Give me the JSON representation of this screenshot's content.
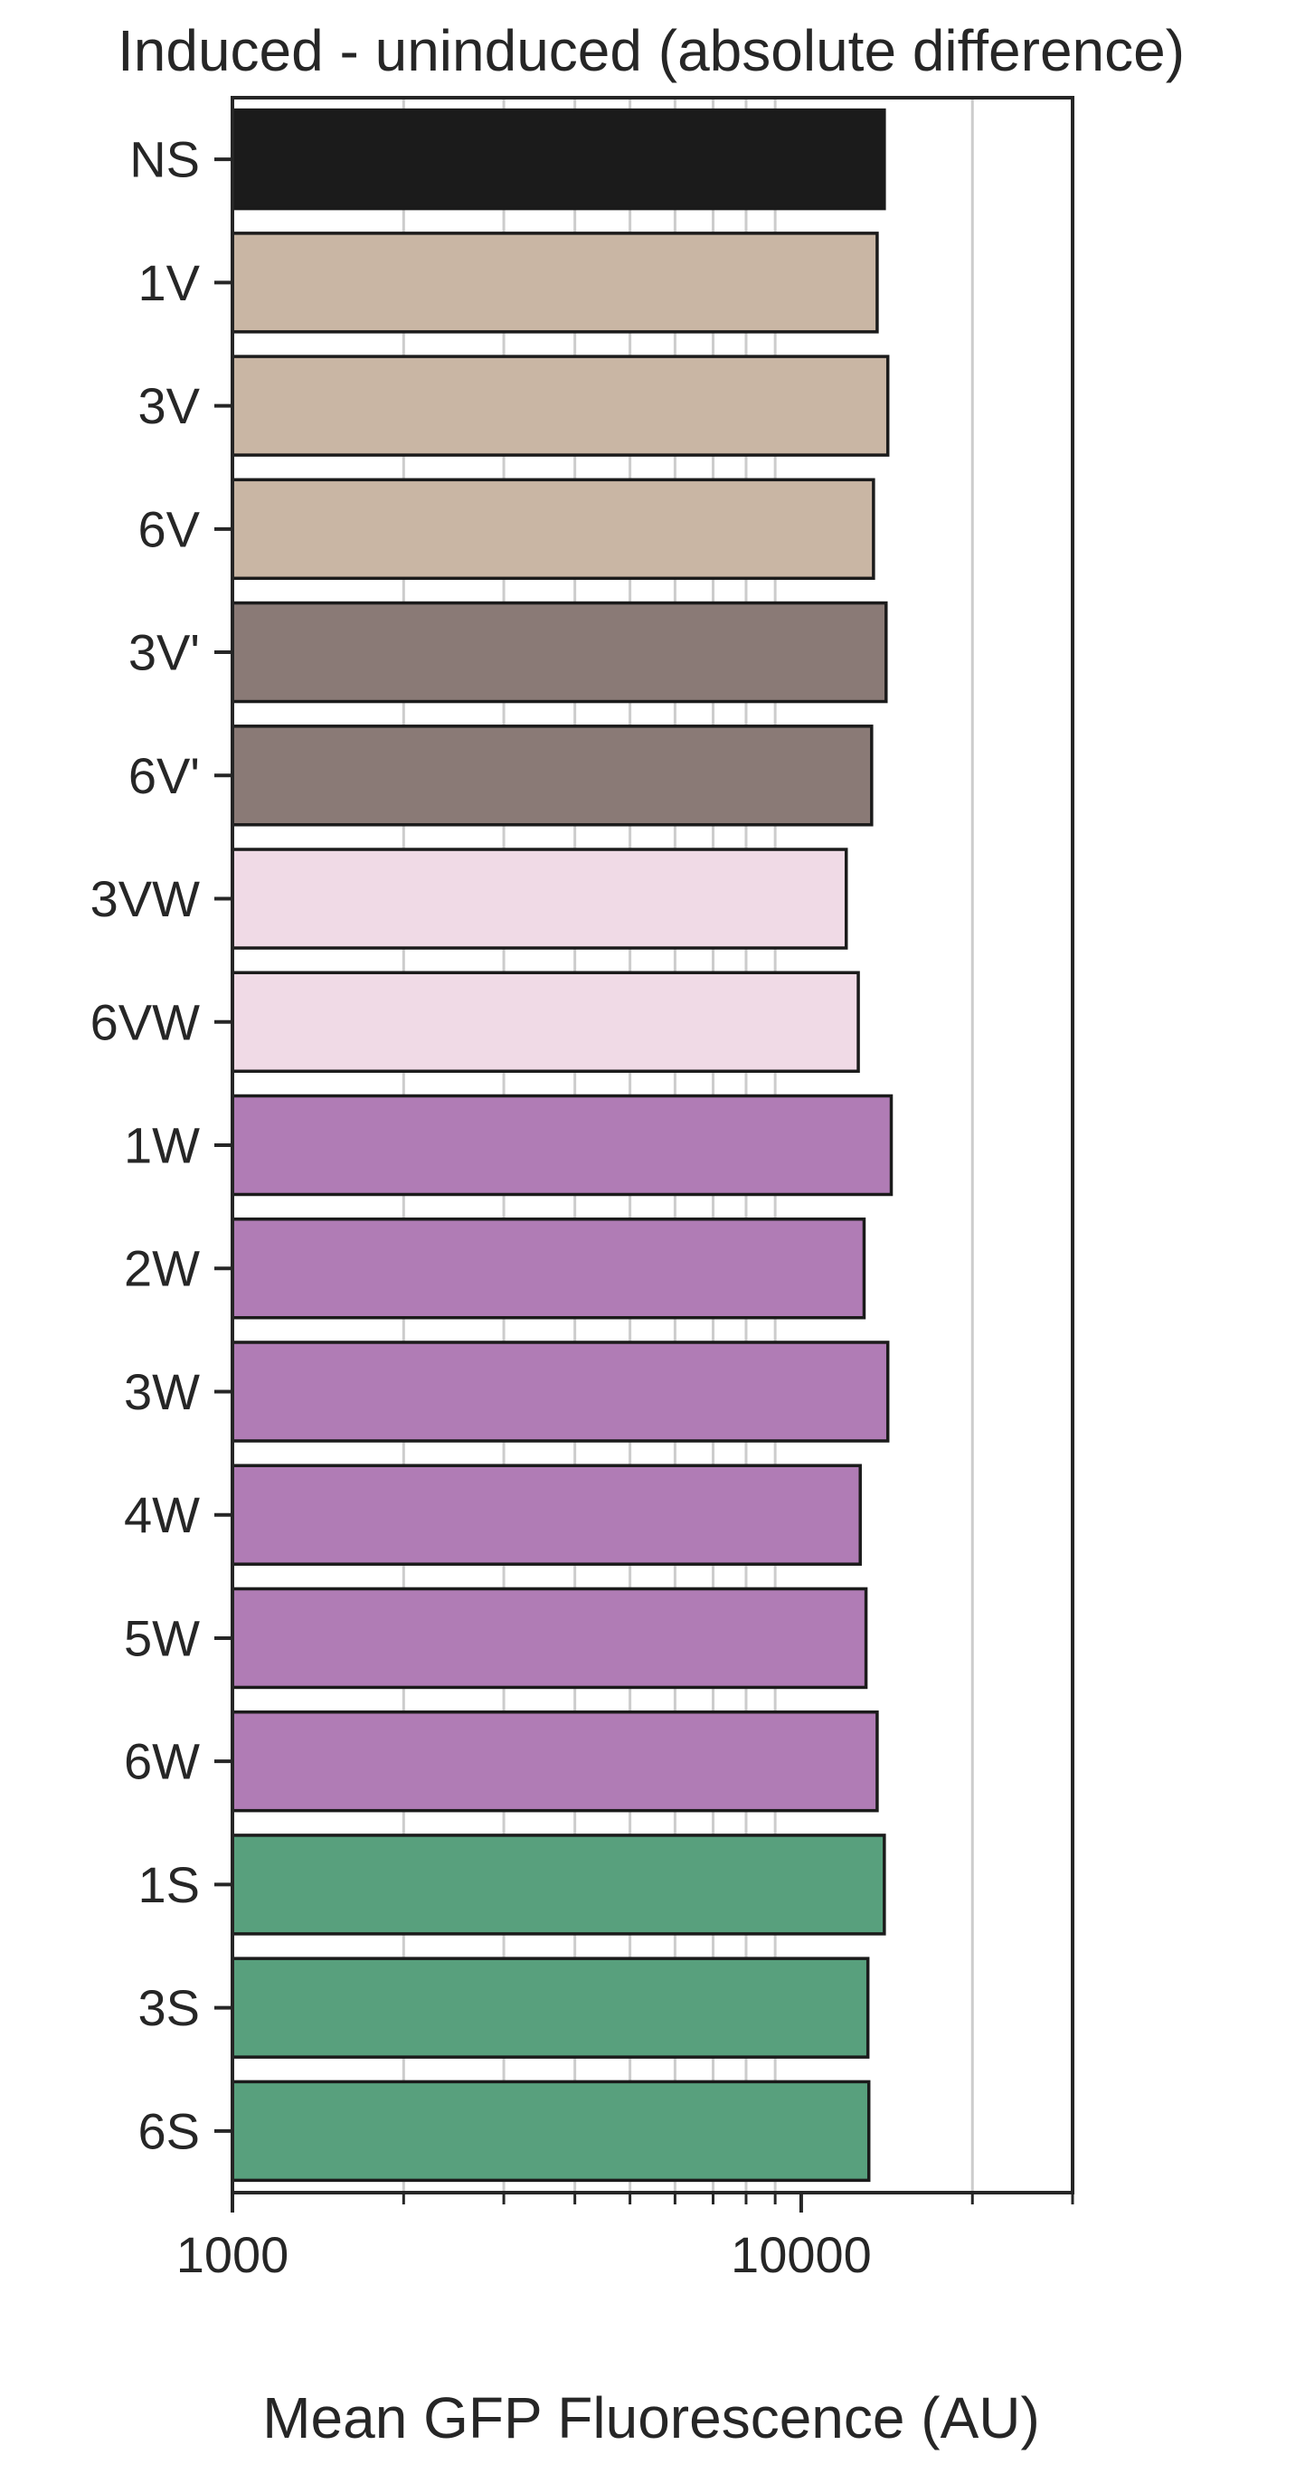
{
  "chart_data": {
    "type": "bar",
    "orientation": "horizontal",
    "title": "Induced - uninduced (absolute difference)",
    "xlabel": "Mean GFP Fluorescence (AU)",
    "ylabel": "",
    "x_scale": "log",
    "xlim": [
      1000,
      30000
    ],
    "x_major_ticks": [
      1000,
      10000
    ],
    "x_major_tick_labels": [
      "1000",
      "10000"
    ],
    "x_minor_ticks": [
      2000,
      3000,
      4000,
      5000,
      6000,
      7000,
      8000,
      9000,
      20000,
      30000
    ],
    "grid": true,
    "categories": [
      "NS",
      "1V",
      "3V",
      "6V",
      "3V'",
      "6V'",
      "3VW",
      "6VW",
      "1W",
      "2W",
      "3W",
      "4W",
      "5W",
      "6W",
      "1S",
      "3S",
      "6S"
    ],
    "values": [
      14000,
      13600,
      14200,
      13400,
      14100,
      13300,
      12000,
      12600,
      14400,
      12900,
      14200,
      12700,
      13000,
      13600,
      14000,
      13100,
      13150
    ],
    "colors": [
      "#1b1b1b",
      "#c9b6a4",
      "#c9b6a4",
      "#c9b6a4",
      "#8a7a76",
      "#8a7a76",
      "#f0dae6",
      "#f0dae6",
      "#b07cb5",
      "#b07cb5",
      "#b07cb5",
      "#b07cb5",
      "#b07cb5",
      "#b07cb5",
      "#58a07d",
      "#58a07d",
      "#58a07d"
    ],
    "edge_color": "#1b1b1b"
  }
}
